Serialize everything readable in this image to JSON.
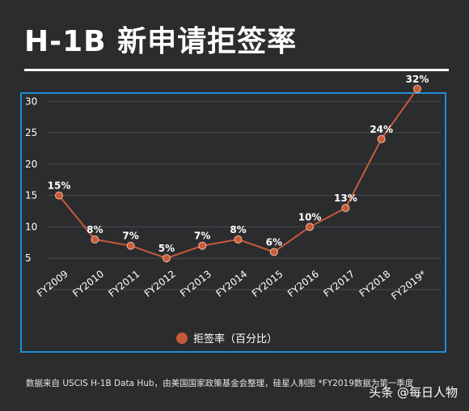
{
  "title": "H-1B 新申请拒签率",
  "footnote": "数据来自 USCIS H-1B Data Hub，由美国国家政策基金会整理，硅星人制图 *FY2019数据为第一季度",
  "watermark": "头条 @每日人物",
  "colors": {
    "background": "#2b2c2e",
    "panel_border": "#1f8fd6",
    "series_line": "#c85a3a",
    "marker_fill": "#c85a3a",
    "marker_stroke": "#f0b7a4",
    "grid": "#4a4b4e",
    "text": "#ffffff"
  },
  "chart_data": {
    "type": "line",
    "categories": [
      "FY2009",
      "FY2010",
      "FY2011",
      "FY2012",
      "FY2013",
      "FY2014",
      "FY2015",
      "FY2016",
      "FY2017",
      "FY2018",
      "FY2019*"
    ],
    "series": [
      {
        "name": "拒签率（百分比）",
        "values": [
          15,
          8,
          7,
          5,
          7,
          8,
          6,
          10,
          13,
          24,
          32
        ],
        "labels": [
          "15%",
          "8%",
          "7%",
          "5%",
          "7%",
          "8%",
          "6%",
          "10%",
          "13%",
          "24%",
          "32%"
        ]
      }
    ],
    "yticks": [
      5,
      10,
      15,
      20,
      25,
      30
    ],
    "ylim": [
      0,
      33
    ],
    "grid": true,
    "legend_position": "bottom-center"
  }
}
